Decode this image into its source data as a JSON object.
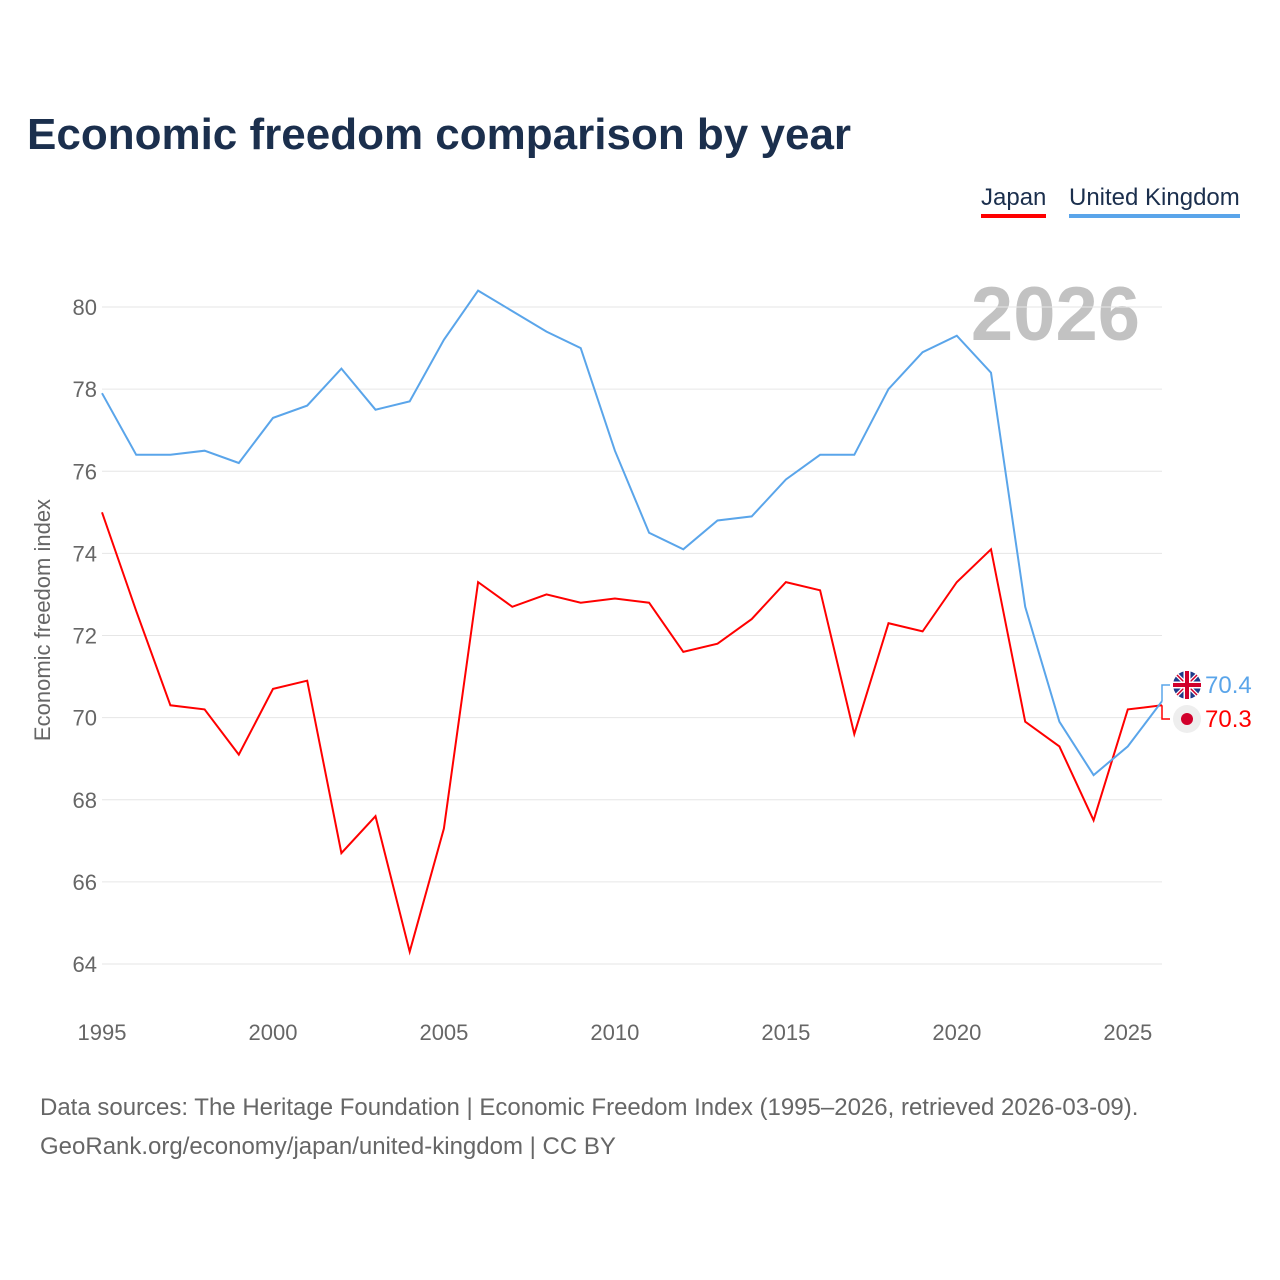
{
  "chart_data": {
    "type": "line",
    "title": "Economic freedom comparison by year",
    "xlabel": "",
    "ylabel": "Economic freedom index",
    "watermark_year": "2026",
    "xlim": [
      1995,
      2026
    ],
    "ylim": [
      64,
      80
    ],
    "xticks": [
      "1995",
      "2000",
      "2005",
      "2010",
      "2015",
      "2020",
      "2025"
    ],
    "yticks": [
      "64",
      "66",
      "68",
      "70",
      "72",
      "74",
      "76",
      "78",
      "80"
    ],
    "grid": true,
    "legend_position": "top-right",
    "x": [
      1995,
      1996,
      1997,
      1998,
      1999,
      2000,
      2001,
      2002,
      2003,
      2004,
      2005,
      2006,
      2007,
      2008,
      2009,
      2010,
      2011,
      2012,
      2013,
      2014,
      2015,
      2016,
      2017,
      2018,
      2019,
      2020,
      2021,
      2022,
      2023,
      2024,
      2025,
      2026
    ],
    "series": [
      {
        "name": "Japan",
        "color": "#ff0000",
        "end_label": "70.3",
        "flag": "japan-flag",
        "values": [
          75.0,
          72.6,
          70.3,
          70.2,
          69.1,
          70.7,
          70.9,
          66.7,
          67.6,
          64.3,
          67.3,
          73.3,
          72.7,
          73.0,
          72.8,
          72.9,
          72.8,
          71.6,
          71.8,
          72.4,
          73.3,
          73.1,
          69.6,
          72.3,
          72.1,
          73.3,
          74.1,
          69.9,
          69.3,
          67.5,
          70.2,
          70.3
        ]
      },
      {
        "name": "United Kingdom",
        "color": "#5aa5ea",
        "end_label": "70.4",
        "flag": "uk-flag",
        "values": [
          77.9,
          76.4,
          76.4,
          76.5,
          76.2,
          77.3,
          77.6,
          78.5,
          77.5,
          77.7,
          79.2,
          80.4,
          79.9,
          79.4,
          79.0,
          76.5,
          74.5,
          74.1,
          74.8,
          74.9,
          75.8,
          76.4,
          76.4,
          78.0,
          78.9,
          79.3,
          78.4,
          72.7,
          69.9,
          68.6,
          69.3,
          70.4
        ]
      }
    ]
  },
  "footer": {
    "line1": "Data sources: The Heritage Foundation | Economic Freedom Index (1995–2026, retrieved 2026-03-09).",
    "line2": "GeoRank.org/economy/japan/united-kingdom | CC BY"
  }
}
